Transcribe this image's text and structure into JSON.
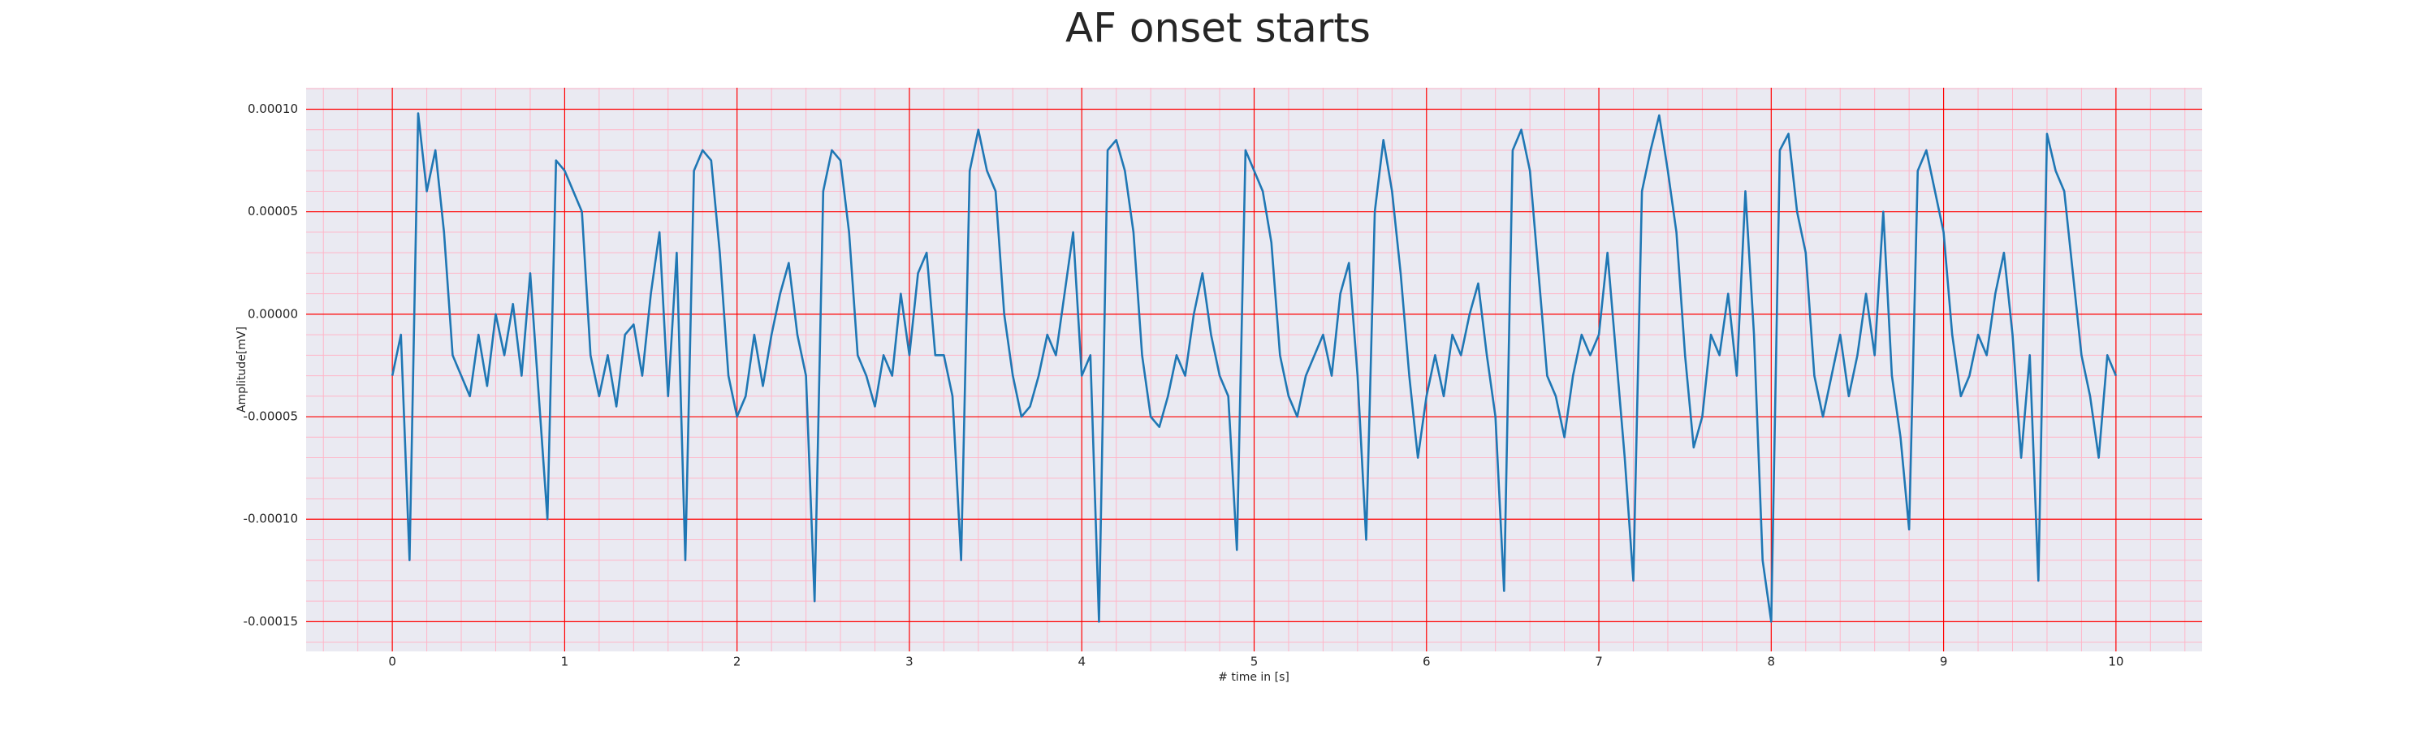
{
  "chart_data": {
    "type": "line",
    "title": "AF onset starts",
    "xlabel": "# time in [s]",
    "ylabel": "Amplitude[mV]",
    "color": "#1f77b4",
    "grid": true,
    "minor_grid": true,
    "grid_color": "#ff0000",
    "minor_grid_color": "#ffb6c8",
    "background": "#eaeaf2",
    "xlim": [
      -0.5,
      10.5
    ],
    "xticks": [
      0,
      1,
      2,
      3,
      4,
      5,
      6,
      7,
      8,
      9,
      10
    ],
    "ylim": [
      -0.0001645,
      0.0001105
    ],
    "yticks": [
      {
        "value": -0.00015,
        "label": "-0.00015"
      },
      {
        "value": -0.0001,
        "label": "-0.00010"
      },
      {
        "value": -5e-05,
        "label": "-0.00005"
      },
      {
        "value": 0,
        "label": "0.00000"
      },
      {
        "value": 5e-05,
        "label": "0.00005"
      },
      {
        "value": 0.0001,
        "label": "0.00010"
      }
    ],
    "x": [
      0,
      0.05,
      0.1,
      0.15,
      0.2,
      0.25,
      0.3,
      0.35,
      0.4,
      0.45,
      0.5,
      0.55,
      0.6,
      0.65,
      0.7,
      0.75,
      0.8,
      0.85,
      0.9,
      0.95,
      1,
      1.05,
      1.1,
      1.15,
      1.2,
      1.25,
      1.3,
      1.35,
      1.4,
      1.45,
      1.5,
      1.55,
      1.6,
      1.65,
      1.7,
      1.75,
      1.8,
      1.85,
      1.9,
      1.95,
      2,
      2.05,
      2.1,
      2.15,
      2.2,
      2.25,
      2.3,
      2.35,
      2.4,
      2.45,
      2.5,
      2.55,
      2.6,
      2.65,
      2.7,
      2.75,
      2.8,
      2.85,
      2.9,
      2.95,
      3,
      3.05,
      3.1,
      3.15,
      3.2,
      3.25,
      3.3,
      3.35,
      3.4,
      3.45,
      3.5,
      3.55,
      3.6,
      3.65,
      3.7,
      3.75,
      3.8,
      3.85,
      3.9,
      3.95,
      4,
      4.05,
      4.1,
      4.15,
      4.2,
      4.25,
      4.3,
      4.35,
      4.4,
      4.45,
      4.5,
      4.55,
      4.6,
      4.65,
      4.7,
      4.75,
      4.8,
      4.85,
      4.9,
      4.95,
      5,
      5.05,
      5.1,
      5.15,
      5.2,
      5.25,
      5.3,
      5.35,
      5.4,
      5.45,
      5.5,
      5.55,
      5.6,
      5.65,
      5.7,
      5.75,
      5.8,
      5.85,
      5.9,
      5.95,
      6,
      6.05,
      6.1,
      6.15,
      6.2,
      6.25,
      6.3,
      6.35,
      6.4,
      6.45,
      6.5,
      6.55,
      6.6,
      6.65,
      6.7,
      6.75,
      6.8,
      6.85,
      6.9,
      6.95,
      7,
      7.05,
      7.1,
      7.15,
      7.2,
      7.25,
      7.3,
      7.35,
      7.4,
      7.45,
      7.5,
      7.55,
      7.6,
      7.65,
      7.7,
      7.75,
      7.8,
      7.85,
      7.9,
      7.95,
      8,
      8.05,
      8.1,
      8.15,
      8.2,
      8.25,
      8.3,
      8.35,
      8.4,
      8.45,
      8.5,
      8.55,
      8.6,
      8.65,
      8.7,
      8.75,
      8.8,
      8.85,
      8.9,
      8.95,
      9,
      9.05,
      9.1,
      9.15,
      9.2,
      9.25,
      9.3,
      9.35,
      9.4,
      9.45,
      9.5,
      9.55,
      9.6,
      9.65,
      9.7,
      9.75,
      9.8,
      9.85,
      9.9,
      9.95,
      10
    ],
    "values": [
      -3e-05,
      -1e-05,
      -0.00012,
      9.8e-05,
      6e-05,
      8e-05,
      4e-05,
      -2e-05,
      -3e-05,
      -4e-05,
      -1e-05,
      -3.5e-05,
      0,
      -2e-05,
      5e-06,
      -3e-05,
      2e-05,
      -4e-05,
      -0.0001,
      7.5e-05,
      7e-05,
      6e-05,
      5e-05,
      -2e-05,
      -4e-05,
      -2e-05,
      -4.5e-05,
      -1e-05,
      -5e-06,
      -3e-05,
      1e-05,
      4e-05,
      -4e-05,
      3e-05,
      -0.00012,
      7e-05,
      8e-05,
      7.5e-05,
      3e-05,
      -3e-05,
      -5e-05,
      -4e-05,
      -1e-05,
      -3.5e-05,
      -1e-05,
      1e-05,
      2.5e-05,
      -1e-05,
      -3e-05,
      -0.00014,
      6e-05,
      8e-05,
      7.5e-05,
      4e-05,
      -2e-05,
      -3e-05,
      -4.5e-05,
      -2e-05,
      -3e-05,
      1e-05,
      -2e-05,
      2e-05,
      3e-05,
      -2e-05,
      -2e-05,
      -4e-05,
      -0.00012,
      7e-05,
      9e-05,
      7e-05,
      6e-05,
      0,
      -3e-05,
      -5e-05,
      -4.5e-05,
      -3e-05,
      -1e-05,
      -2e-05,
      1e-05,
      4e-05,
      -3e-05,
      -2e-05,
      -0.00015,
      8e-05,
      8.5e-05,
      7e-05,
      4e-05,
      -2e-05,
      -5e-05,
      -5.5e-05,
      -4e-05,
      -2e-05,
      -3e-05,
      0,
      2e-05,
      -1e-05,
      -3e-05,
      -4e-05,
      -0.000115,
      8e-05,
      7e-05,
      6e-05,
      3.5e-05,
      -2e-05,
      -4e-05,
      -5e-05,
      -3e-05,
      -2e-05,
      -1e-05,
      -3e-05,
      1e-05,
      2.5e-05,
      -3e-05,
      -0.00011,
      5e-05,
      8.5e-05,
      6e-05,
      2e-05,
      -3e-05,
      -7e-05,
      -4e-05,
      -2e-05,
      -4e-05,
      -1e-05,
      -2e-05,
      0,
      1.5e-05,
      -2e-05,
      -5e-05,
      -0.000135,
      8e-05,
      9e-05,
      7e-05,
      2e-05,
      -3e-05,
      -4e-05,
      -6e-05,
      -3e-05,
      -1e-05,
      -2e-05,
      -1e-05,
      3e-05,
      -2e-05,
      -7e-05,
      -0.00013,
      6e-05,
      8e-05,
      9.7e-05,
      7e-05,
      4e-05,
      -2e-05,
      -6.5e-05,
      -5e-05,
      -1e-05,
      -2e-05,
      1e-05,
      -3e-05,
      6e-05,
      -1e-05,
      -0.00012,
      -0.00015,
      8e-05,
      8.8e-05,
      5e-05,
      3e-05,
      -3e-05,
      -5e-05,
      -3e-05,
      -1e-05,
      -4e-05,
      -2e-05,
      1e-05,
      -2e-05,
      5e-05,
      -3e-05,
      -6e-05,
      -0.000105,
      7e-05,
      8e-05,
      6e-05,
      4e-05,
      -1e-05,
      -4e-05,
      -3e-05,
      -1e-05,
      -2e-05,
      1e-05,
      3e-05,
      -1e-05,
      -7e-05,
      -2e-05,
      -0.00013,
      8.8e-05,
      7e-05,
      6e-05,
      2e-05,
      -2e-05,
      -4e-05,
      -7e-05,
      -2e-05,
      -3e-05
    ]
  }
}
